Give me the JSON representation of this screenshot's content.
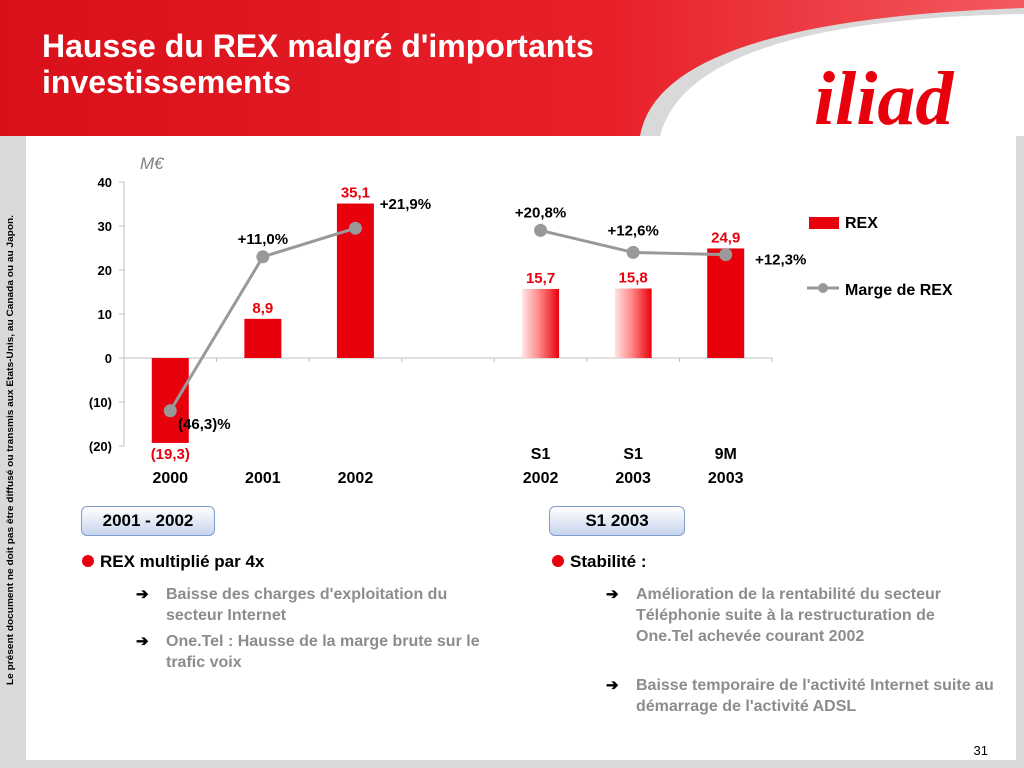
{
  "slide": {
    "title_line1": "Hausse du REX malgré d'importants",
    "title_line2": "investissements",
    "logo_text": "iliad",
    "side_note": "Le présent document ne doit pas être diffusé ou transmis aux Etats-Unis, au Canada ou au Japon.",
    "page_number": "31",
    "colors": {
      "brand_red": "#e8000d",
      "header_red": "#e4121a",
      "frame_grey": "#d9d9d9",
      "line_grey": "#999999"
    }
  },
  "chart_data": {
    "type": "bar",
    "unit": "M€",
    "ylim": [
      -20,
      40
    ],
    "yticks": [
      "40",
      "30",
      "20",
      "10",
      "0",
      "(10)",
      "(20)"
    ],
    "ytick_values": [
      40,
      30,
      20,
      10,
      0,
      -10,
      -20
    ],
    "categories": [
      {
        "line1": "2000",
        "line2": ""
      },
      {
        "line1": "2001",
        "line2": ""
      },
      {
        "line1": "2002",
        "line2": ""
      },
      {
        "line1": "",
        "line2": ""
      },
      {
        "line1": "S1",
        "line2": "2002"
      },
      {
        "line1": "S1",
        "line2": "2003"
      },
      {
        "line1": "9M",
        "line2": "2003"
      }
    ],
    "series": [
      {
        "name": "REX",
        "values": [
          -19.3,
          8.9,
          35.1,
          null,
          15.7,
          15.8,
          24.9
        ],
        "labels": [
          "(19,3)",
          "8,9",
          "35,1",
          "",
          "15,7",
          "15,8",
          "24,9"
        ],
        "styles": [
          "solid",
          "solid",
          "solid",
          "",
          "gradient",
          "gradient",
          "solid"
        ]
      },
      {
        "name": "Marge de REX",
        "values": [
          -12,
          23,
          29.5,
          null,
          29,
          24,
          23.5
        ],
        "labels": [
          "(46,3)%",
          "+11,0%",
          "+21,9%",
          "",
          "+20,8%",
          "+12,6%",
          "+12,3%"
        ]
      }
    ],
    "legend": [
      "REX",
      "Marge de REX"
    ],
    "legend_position": "right"
  },
  "left_panel": {
    "box_label": "2001 - 2002",
    "heading": "REX multiplié par 4x",
    "bullets": [
      "Baisse des charges d'exploitation du secteur Internet",
      "One.Tel : Hausse de la marge brute sur le trafic voix"
    ]
  },
  "right_panel": {
    "box_label": "S1 2003",
    "heading": "Stabilité :",
    "bullets": [
      "Amélioration de la rentabilité du secteur Téléphonie suite à la restructuration de One.Tel achevée courant 2002",
      "Baisse temporaire de l'activité Internet suite au démarrage de l'activité ADSL"
    ]
  }
}
